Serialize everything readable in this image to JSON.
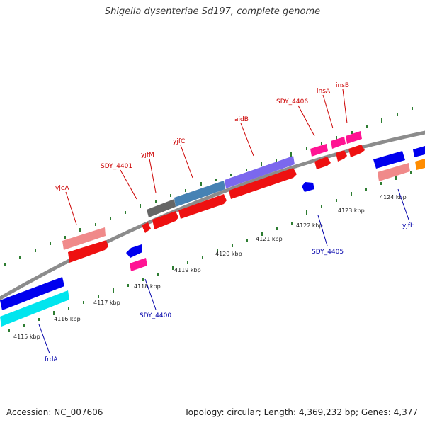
{
  "title": "Shigella dysenteriae Sd197, complete genome",
  "footer": {
    "accession": "Accession: NC_007606",
    "summary": "Topology: circular; Length: 4,369,232 bp; Genes: 4,377"
  },
  "kbp_labels": [
    "4115 kbp",
    "4116 kbp",
    "4117 kbp",
    "4118 kbp",
    "4119 kbp",
    "4120 kbp",
    "4121 kbp",
    "4122 kbp",
    "4123 kbp",
    "4124 kbp"
  ],
  "genes_top": [
    "yjeA",
    "SDY_4401",
    "yjfM",
    "yjfC",
    "aidB",
    "SDY_4406",
    "insA",
    "insB"
  ],
  "genes_bottom": [
    "frdA",
    "SDY_4400",
    "SDY_4405",
    "yjfH"
  ],
  "colors": {
    "backbone": "#8c8c8c",
    "tick": "#2e7d32",
    "forward_gene": "#ee1111",
    "reverse_gene": "#0000ee",
    "label_top": "#cc0000",
    "label_bottom": "#0000aa"
  }
}
